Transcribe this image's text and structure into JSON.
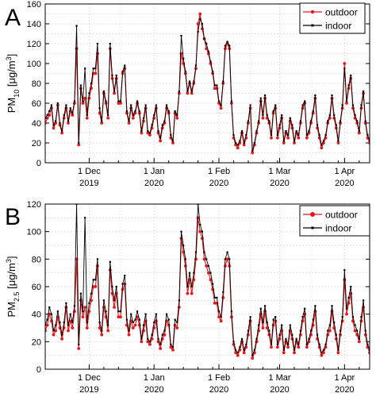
{
  "chart_data": [
    {
      "type": "line",
      "panel_label": "A",
      "ylabel_main": "PM",
      "ylabel_sub": "10",
      "ylabel_unit": " [μg/m",
      "ylabel_sup": "3",
      "ylabel_close": "]",
      "xlim": [
        "2019-11-10",
        "2020-04-13"
      ],
      "ylim": [
        0,
        160
      ],
      "yticks": [
        0,
        20,
        40,
        60,
        80,
        100,
        120,
        140,
        160
      ],
      "xticks": [
        {
          "date": "2019-12-01",
          "label1": "1 Dec",
          "label2": "2019"
        },
        {
          "date": "2020-01-01",
          "label1": "1 Jan",
          "label2": "2020"
        },
        {
          "date": "2020-02-01",
          "label1": "1 Feb",
          "label2": "2020"
        },
        {
          "date": "2020-03-01",
          "label1": "1 Mar",
          "label2": "2020"
        },
        {
          "date": "2020-04-01",
          "label1": "1 Apr",
          "label2": "2020"
        }
      ],
      "grid": true,
      "legend_position": "top-right",
      "start_date": "2019-11-10",
      "series": [
        {
          "name": "outdoor",
          "color": "#e8171a",
          "values": [
            40,
            45,
            48,
            55,
            35,
            40,
            58,
            38,
            30,
            45,
            55,
            40,
            52,
            48,
            60,
            115,
            18,
            75,
            60,
            65,
            45,
            65,
            75,
            90,
            90,
            110,
            50,
            40,
            70,
            60,
            45,
            115,
            85,
            70,
            85,
            60,
            60,
            90,
            95,
            50,
            40,
            55,
            45,
            50,
            60,
            50,
            30,
            42,
            55,
            30,
            28,
            35,
            45,
            55,
            30,
            22,
            35,
            40,
            55,
            50,
            25,
            20,
            50,
            45,
            70,
            110,
            100,
            90,
            70,
            80,
            70,
            80,
            95,
            140,
            150,
            135,
            125,
            115,
            110,
            100,
            90,
            75,
            75,
            60,
            55,
            80,
            115,
            120,
            115,
            60,
            25,
            18,
            15,
            20,
            30,
            18,
            25,
            40,
            55,
            10,
            18,
            30,
            40,
            62,
            45,
            65,
            45,
            40,
            25,
            50,
            55,
            25,
            35,
            45,
            20,
            30,
            25,
            42,
            35,
            20,
            30,
            25,
            40,
            55,
            60,
            25,
            30,
            40,
            50,
            65,
            35,
            25,
            15,
            20,
            25,
            40,
            45,
            65,
            45,
            35,
            20,
            40,
            55,
            100,
            60,
            75,
            85,
            55,
            45,
            40,
            30,
            55,
            70,
            40,
            25,
            20,
            30,
            50,
            75,
            95,
            85,
            50,
            30,
            45,
            40,
            35,
            45,
            20,
            30,
            40,
            45,
            20
          ]
        },
        {
          "name": "indoor",
          "color": "#000000",
          "values": [
            45,
            48,
            52,
            58,
            38,
            42,
            60,
            40,
            32,
            48,
            58,
            42,
            55,
            50,
            62,
            138,
            20,
            78,
            62,
            95,
            48,
            70,
            80,
            95,
            95,
            120,
            55,
            42,
            72,
            62,
            48,
            120,
            88,
            72,
            88,
            62,
            62,
            92,
            98,
            52,
            42,
            58,
            48,
            52,
            62,
            52,
            32,
            45,
            58,
            32,
            30,
            38,
            48,
            58,
            32,
            25,
            38,
            42,
            58,
            52,
            28,
            22,
            52,
            48,
            72,
            128,
            105,
            92,
            72,
            82,
            72,
            82,
            98,
            132,
            145,
            140,
            125,
            120,
            112,
            102,
            92,
            78,
            78,
            62,
            58,
            82,
            118,
            122,
            118,
            62,
            28,
            20,
            18,
            22,
            32,
            20,
            28,
            42,
            58,
            12,
            20,
            32,
            42,
            65,
            48,
            68,
            48,
            42,
            28,
            52,
            58,
            28,
            38,
            48,
            22,
            32,
            28,
            45,
            38,
            22,
            32,
            28,
            42,
            58,
            62,
            28,
            32,
            42,
            52,
            68,
            38,
            28,
            18,
            22,
            28,
            42,
            48,
            68,
            48,
            38,
            22,
            42,
            58,
            95,
            62,
            78,
            88,
            58,
            48,
            42,
            32,
            58,
            72,
            42,
            28,
            22,
            32,
            52,
            78,
            98,
            88,
            52,
            32,
            48,
            42,
            38,
            48,
            22,
            32,
            42,
            48,
            22
          ]
        }
      ]
    },
    {
      "type": "line",
      "panel_label": "B",
      "ylabel_main": "PM",
      "ylabel_sub": "2.5",
      "ylabel_unit": " [μg/m",
      "ylabel_sup": "3",
      "ylabel_close": "]",
      "xlim": [
        "2019-11-10",
        "2020-04-13"
      ],
      "ylim": [
        0,
        120
      ],
      "yticks": [
        0,
        20,
        40,
        60,
        80,
        100,
        120
      ],
      "xticks": [
        {
          "date": "2019-12-01",
          "label1": "1 Dec",
          "label2": "2019"
        },
        {
          "date": "2020-01-01",
          "label1": "1 Jan",
          "label2": "2020"
        },
        {
          "date": "2020-02-01",
          "label1": "1 Feb",
          "label2": "2020"
        },
        {
          "date": "2020-03-01",
          "label1": "1 Mar",
          "label2": "2020"
        },
        {
          "date": "2020-04-01",
          "label1": "1 Apr",
          "label2": "2020"
        }
      ],
      "grid": true,
      "legend_position": "top-right",
      "start_date": "2019-11-10",
      "series": [
        {
          "name": "outdoor",
          "color": "#e8171a",
          "values": [
            28,
            32,
            40,
            35,
            25,
            28,
            38,
            30,
            22,
            30,
            45,
            28,
            35,
            30,
            42,
            80,
            15,
            50,
            38,
            45,
            30,
            42,
            50,
            60,
            60,
            75,
            30,
            25,
            45,
            38,
            28,
            72,
            55,
            45,
            55,
            38,
            38,
            58,
            62,
            32,
            25,
            35,
            30,
            32,
            38,
            32,
            20,
            28,
            35,
            20,
            18,
            22,
            30,
            35,
            20,
            15,
            22,
            25,
            35,
            32,
            16,
            14,
            32,
            30,
            45,
            95,
            85,
            75,
            55,
            65,
            55,
            65,
            80,
            110,
            100,
            95,
            80,
            75,
            70,
            65,
            58,
            48,
            48,
            38,
            35,
            52,
            75,
            80,
            75,
            38,
            18,
            12,
            10,
            14,
            20,
            12,
            16,
            25,
            35,
            8,
            12,
            20,
            28,
            40,
            30,
            42,
            30,
            25,
            16,
            32,
            35,
            16,
            22,
            28,
            12,
            20,
            16,
            28,
            22,
            12,
            20,
            16,
            25,
            35,
            40,
            16,
            20,
            25,
            32,
            42,
            22,
            16,
            10,
            12,
            16,
            25,
            28,
            42,
            30,
            22,
            12,
            25,
            35,
            65,
            40,
            48,
            55,
            35,
            28,
            25,
            20,
            35,
            45,
            25,
            16,
            12,
            20,
            32,
            50,
            62,
            55,
            32,
            20,
            28,
            25,
            22,
            28,
            12,
            20,
            25,
            28,
            18
          ]
        },
        {
          "name": "indoor",
          "color": "#000000",
          "values": [
            32,
            36,
            45,
            40,
            28,
            32,
            42,
            34,
            25,
            34,
            48,
            32,
            40,
            34,
            46,
            120,
            18,
            55,
            42,
            110,
            34,
            48,
            55,
            65,
            65,
            80,
            34,
            28,
            50,
            42,
            32,
            78,
            60,
            50,
            60,
            42,
            42,
            62,
            68,
            36,
            28,
            40,
            34,
            36,
            42,
            36,
            22,
            32,
            40,
            22,
            20,
            25,
            34,
            40,
            22,
            18,
            25,
            28,
            40,
            36,
            18,
            16,
            36,
            34,
            50,
            100,
            90,
            80,
            60,
            70,
            60,
            70,
            85,
            120,
            105,
            100,
            85,
            80,
            75,
            70,
            62,
            52,
            52,
            42,
            38,
            56,
            80,
            85,
            80,
            42,
            20,
            14,
            12,
            16,
            22,
            14,
            18,
            28,
            38,
            10,
            14,
            22,
            32,
            44,
            34,
            46,
            34,
            28,
            18,
            36,
            38,
            18,
            25,
            32,
            14,
            22,
            18,
            32,
            25,
            14,
            22,
            18,
            28,
            38,
            44,
            18,
            22,
            28,
            36,
            46,
            25,
            18,
            12,
            14,
            18,
            28,
            32,
            46,
            34,
            25,
            14,
            28,
            38,
            72,
            44,
            52,
            60,
            38,
            32,
            28,
            22,
            38,
            50,
            28,
            18,
            14,
            22,
            36,
            55,
            68,
            60,
            36,
            22,
            32,
            28,
            25,
            32,
            14,
            22,
            28,
            32,
            20
          ]
        }
      ]
    }
  ]
}
